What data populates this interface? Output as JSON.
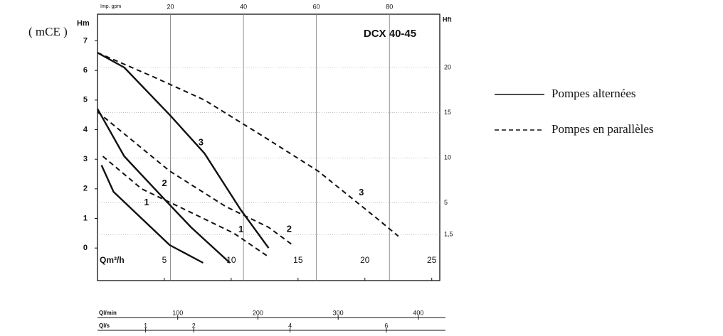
{
  "chart_data": {
    "type": "line",
    "title": "DCX 40-45",
    "unit_label": "( mCE )",
    "y_label": "Hm",
    "y2_label": "Hft",
    "x_label": "Qm³/h",
    "xlim": [
      0,
      25.6
    ],
    "xticks": [
      5,
      10,
      15,
      20,
      25
    ],
    "ylim": [
      -1.1,
      7.9
    ],
    "yticks": [
      0,
      1,
      2,
      3,
      4,
      5,
      6,
      7
    ],
    "y2lim": [
      -3.6,
      25.9
    ],
    "y2ticks": [
      20,
      15,
      10,
      5,
      {
        "value": 1.5,
        "label": "1,5"
      }
    ],
    "top_axis": {
      "label": "Imp. gpm",
      "lim": [
        0,
        93.8
      ],
      "ticks": [
        20,
        40,
        60,
        80
      ]
    },
    "bottom_axes": [
      {
        "label": "Ql/min",
        "lim": [
          0,
          426.7
        ],
        "ticks": [
          100,
          200,
          300,
          400
        ]
      },
      {
        "label": "Ql/s",
        "lim": [
          0,
          7.11
        ],
        "ticks": [
          1,
          2,
          4,
          6
        ]
      }
    ],
    "color": "#111111",
    "grid": true,
    "legend": [
      {
        "label": "Pompes alternées",
        "dashed": false
      },
      {
        "label": "Pompes en parallèles",
        "dashed": true
      }
    ],
    "series": [
      {
        "name": "3",
        "dashed": false,
        "x": [
          0,
          2,
          5.4,
          8,
          10.7,
          12.8
        ],
        "values": [
          6.6,
          6.1,
          4.5,
          3.2,
          1.3,
          0
        ]
      },
      {
        "name": "2",
        "dashed": false,
        "x": [
          0,
          2,
          4.9,
          7,
          9.9
        ],
        "values": [
          4.7,
          3.1,
          1.7,
          0.7,
          -0.5
        ]
      },
      {
        "name": "1",
        "dashed": false,
        "x": [
          0.3,
          1.2,
          3.3,
          5.4,
          7.9
        ],
        "values": [
          2.8,
          1.9,
          1,
          0.1,
          -0.5
        ]
      },
      {
        "name": "3",
        "dashed": true,
        "x": [
          0,
          4.1,
          8,
          12.3,
          16.5,
          20.9,
          22.5
        ],
        "values": [
          6.6,
          5.8,
          5,
          3.8,
          2.6,
          1,
          0.4
        ]
      },
      {
        "name": "2",
        "dashed": true,
        "x": [
          0,
          5.4,
          9.6,
          12.8,
          14.6
        ],
        "values": [
          4.6,
          2.6,
          1.4,
          0.7,
          0.1
        ]
      },
      {
        "name": "1",
        "dashed": true,
        "x": [
          0.4,
          3.3,
          7,
          10.2,
          12.8
        ],
        "values": [
          3.1,
          2,
          1.2,
          0.5,
          -0.3
        ]
      }
    ]
  }
}
